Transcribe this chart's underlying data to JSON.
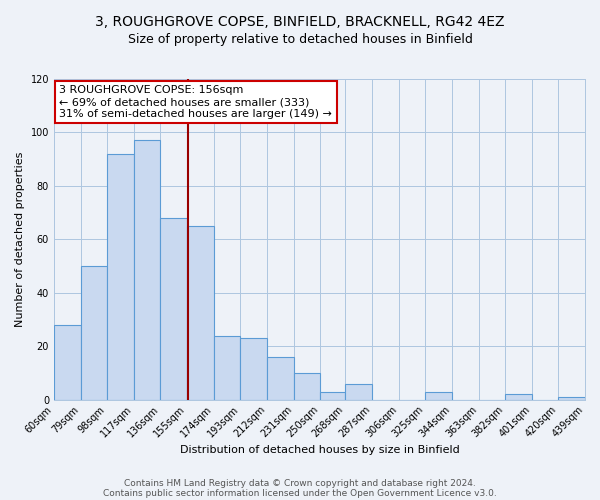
{
  "title": "3, ROUGHGROVE COPSE, BINFIELD, BRACKNELL, RG42 4EZ",
  "subtitle": "Size of property relative to detached houses in Binfield",
  "xlabel": "Distribution of detached houses by size in Binfield",
  "ylabel": "Number of detached properties",
  "bin_edges": [
    60,
    79,
    98,
    117,
    136,
    155,
    174,
    193,
    212,
    231,
    250,
    268,
    287,
    306,
    325,
    344,
    363,
    382,
    401,
    420,
    439
  ],
  "bar_heights": [
    28,
    50,
    92,
    97,
    68,
    65,
    24,
    23,
    16,
    10,
    3,
    6,
    0,
    0,
    3,
    0,
    0,
    2,
    0,
    1
  ],
  "bar_color": "#c9d9f0",
  "bar_edge_color": "#5b9bd5",
  "property_size": 156,
  "property_line_color": "#990000",
  "annotation_line1": "3 ROUGHGROVE COPSE: 156sqm",
  "annotation_line2": "← 69% of detached houses are smaller (333)",
  "annotation_line3": "31% of semi-detached houses are larger (149) →",
  "annotation_box_edge_color": "#cc0000",
  "annotation_box_facecolor": "#ffffff",
  "ylim": [
    0,
    120
  ],
  "yticks": [
    0,
    20,
    40,
    60,
    80,
    100,
    120
  ],
  "tick_labels": [
    "60sqm",
    "79sqm",
    "98sqm",
    "117sqm",
    "136sqm",
    "155sqm",
    "174sqm",
    "193sqm",
    "212sqm",
    "231sqm",
    "250sqm",
    "268sqm",
    "287sqm",
    "306sqm",
    "325sqm",
    "344sqm",
    "363sqm",
    "382sqm",
    "401sqm",
    "420sqm",
    "439sqm"
  ],
  "footer_line1": "Contains HM Land Registry data © Crown copyright and database right 2024.",
  "footer_line2": "Contains public sector information licensed under the Open Government Licence v3.0.",
  "background_color": "#eef2f8",
  "grid_color": "#aec6e0",
  "title_fontsize": 10,
  "subtitle_fontsize": 9,
  "axis_label_fontsize": 8,
  "tick_fontsize": 7,
  "annotation_fontsize": 8,
  "footer_fontsize": 6.5
}
